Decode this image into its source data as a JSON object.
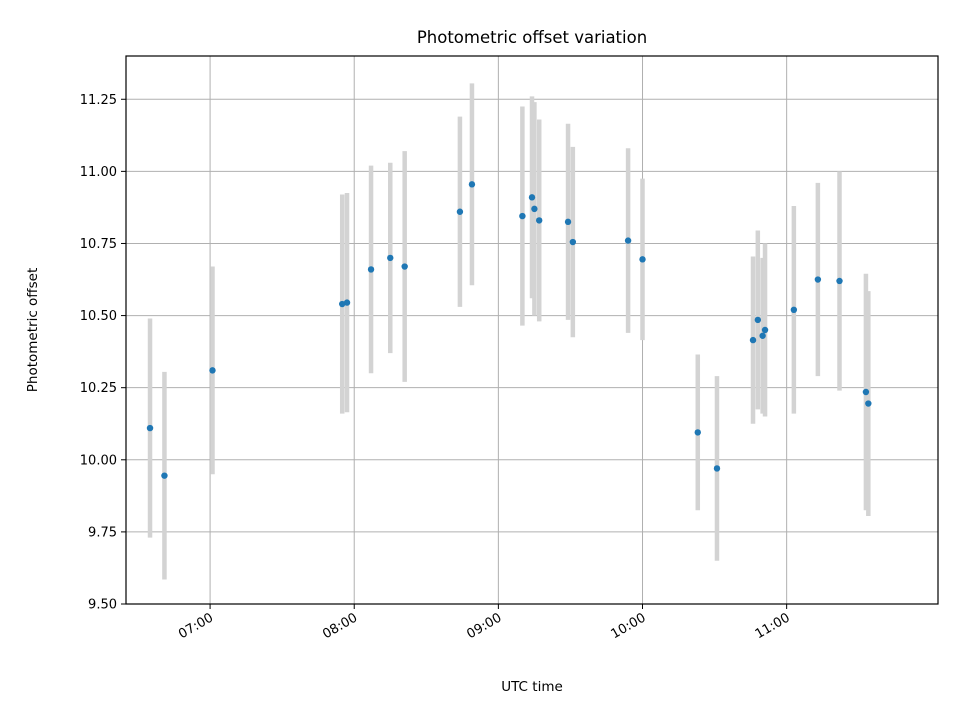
{
  "chart_data": {
    "type": "scatter",
    "title": "Photometric offset variation",
    "xlabel": "UTC time",
    "ylabel": "Photometric offset",
    "x_axis": {
      "type": "time",
      "range": [
        "06:25",
        "12:03"
      ],
      "ticks": [
        "07:00",
        "08:00",
        "09:00",
        "10:00",
        "11:00"
      ]
    },
    "y_axis": {
      "range": [
        9.5,
        11.4
      ],
      "ticks": [
        "9.50",
        "9.75",
        "10.00",
        "10.25",
        "10.50",
        "10.75",
        "11.00",
        "11.25"
      ]
    },
    "grid": true,
    "legend": "none",
    "colors": {
      "point": "#1f77b4",
      "errorbar": "#d3d3d3",
      "grid": "#b0b0b0"
    },
    "points": [
      {
        "t": "06:35",
        "y": 10.11,
        "yerr": 0.38
      },
      {
        "t": "06:41",
        "y": 9.945,
        "yerr": 0.36
      },
      {
        "t": "07:01",
        "y": 10.31,
        "yerr": 0.36
      },
      {
        "t": "07:55",
        "y": 10.54,
        "yerr": 0.38
      },
      {
        "t": "07:57",
        "y": 10.545,
        "yerr": 0.38
      },
      {
        "t": "08:07",
        "y": 10.66,
        "yerr": 0.36
      },
      {
        "t": "08:15",
        "y": 10.7,
        "yerr": 0.33
      },
      {
        "t": "08:21",
        "y": 10.67,
        "yerr": 0.4
      },
      {
        "t": "08:44",
        "y": 10.86,
        "yerr": 0.33
      },
      {
        "t": "08:49",
        "y": 10.955,
        "yerr": 0.35
      },
      {
        "t": "09:10",
        "y": 10.845,
        "yerr": 0.38
      },
      {
        "t": "09:14",
        "y": 10.91,
        "yerr": 0.35
      },
      {
        "t": "09:15",
        "y": 10.87,
        "yerr": 0.37
      },
      {
        "t": "09:17",
        "y": 10.83,
        "yerr": 0.35
      },
      {
        "t": "09:29",
        "y": 10.825,
        "yerr": 0.34
      },
      {
        "t": "09:31",
        "y": 10.755,
        "yerr": 0.33
      },
      {
        "t": "09:54",
        "y": 10.76,
        "yerr": 0.32
      },
      {
        "t": "10:00",
        "y": 10.695,
        "yerr": 0.28
      },
      {
        "t": "10:23",
        "y": 10.095,
        "yerr": 0.27
      },
      {
        "t": "10:31",
        "y": 9.97,
        "yerr": 0.32
      },
      {
        "t": "10:46",
        "y": 10.415,
        "yerr": 0.29
      },
      {
        "t": "10:48",
        "y": 10.485,
        "yerr": 0.31
      },
      {
        "t": "10:50",
        "y": 10.43,
        "yerr": 0.27
      },
      {
        "t": "10:51",
        "y": 10.45,
        "yerr": 0.3
      },
      {
        "t": "11:03",
        "y": 10.52,
        "yerr": 0.36
      },
      {
        "t": "11:13",
        "y": 10.625,
        "yerr": 0.335
      },
      {
        "t": "11:22",
        "y": 10.62,
        "yerr": 0.38
      },
      {
        "t": "11:33",
        "y": 10.235,
        "yerr": 0.41
      },
      {
        "t": "11:34",
        "y": 10.195,
        "yerr": 0.39
      }
    ]
  }
}
